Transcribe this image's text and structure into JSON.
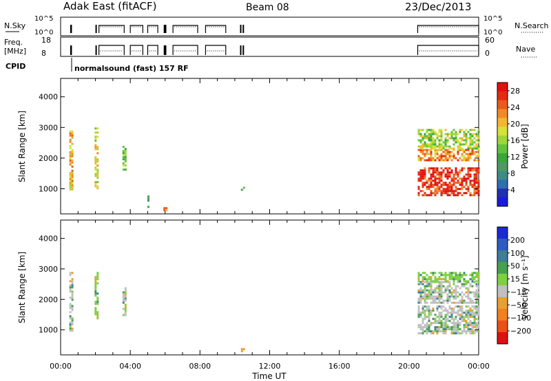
{
  "header": {
    "station": "Adak East (fitACF)",
    "beam": "Beam 08",
    "date": "23/Dec/2013"
  },
  "strips": {
    "nsky_label": "N.Sky",
    "nsky_ticks": [
      "10^5",
      "10^0"
    ],
    "nsearch_label": "N.Search",
    "nsearch_ticks": [
      "10^5",
      "10^0"
    ],
    "freq_label_1": "Freq.",
    "freq_label_2": "[MHz]",
    "freq_ticks": [
      "18",
      "8"
    ],
    "nave_label": "Nave",
    "nave_ticks": [
      "60",
      "0"
    ],
    "cpid_label": "CPID",
    "cpid_text": "normalsound (fast) 157 RF",
    "operating_windows_hours": [
      [
        0.55,
        0.65
      ],
      [
        2.0,
        2.07
      ],
      [
        2.2,
        3.65
      ],
      [
        4.0,
        4.72
      ],
      [
        5.0,
        5.58
      ],
      [
        5.92,
        6.07
      ],
      [
        6.45,
        7.87
      ],
      [
        8.32,
        9.48
      ],
      [
        10.3,
        10.38
      ],
      [
        10.45,
        10.52
      ],
      [
        20.5,
        24.0
      ]
    ],
    "colors": {
      "solid": "#000000",
      "dotted": "#000000"
    }
  },
  "chart_data": [
    {
      "type": "heatmap",
      "panel": "power",
      "xlabel": "Time UT",
      "ylabel": "Slant Range [km]",
      "x_ticks": [
        "00:00",
        "04:00",
        "08:00",
        "12:00",
        "16:00",
        "20:00",
        "00:00"
      ],
      "xlim_hours": [
        0,
        24
      ],
      "ylim": [
        180,
        4600
      ],
      "y_ticks": [
        "1000",
        "2000",
        "3000",
        "4000"
      ],
      "colorbar": {
        "label": "Power [dB]",
        "ticks": [
          "4",
          "8",
          "12",
          "16",
          "20",
          "24",
          "28"
        ],
        "range": [
          0,
          30
        ],
        "colors": [
          "#1a1adc",
          "#2030b0",
          "#2f6eb0",
          "#3f8c86",
          "#4f9a63",
          "#3aa63c",
          "#62c23c",
          "#9ed63a",
          "#d8e03a",
          "#f2b632",
          "#f08a28",
          "#ea5a1e",
          "#e42a14",
          "#e01010"
        ]
      },
      "echo_bands": [
        {
          "t0": 0.5,
          "t1": 0.68,
          "r0": 1000,
          "r1": 2900,
          "level": 20
        },
        {
          "t0": 1.95,
          "t1": 2.08,
          "r0": 1000,
          "r1": 3000,
          "level": 18
        },
        {
          "t0": 3.55,
          "t1": 3.68,
          "r0": 1600,
          "r1": 2400,
          "level": 14
        },
        {
          "t0": 4.98,
          "t1": 5.05,
          "r0": 300,
          "r1": 780,
          "level": 10
        },
        {
          "t0": 5.9,
          "t1": 6.02,
          "r0": 260,
          "r1": 400,
          "level": 24
        },
        {
          "t0": 10.35,
          "t1": 10.48,
          "r0": 950,
          "r1": 1200,
          "level": 10
        },
        {
          "t0": 20.5,
          "t1": 24.0,
          "r0": 800,
          "r1": 1700,
          "level": 27
        },
        {
          "t0": 20.5,
          "t1": 24.0,
          "r0": 1900,
          "r1": 2300,
          "level": 22
        },
        {
          "t0": 20.5,
          "t1": 24.0,
          "r0": 2300,
          "r1": 2950,
          "level": 15
        }
      ]
    },
    {
      "type": "heatmap",
      "panel": "velocity",
      "xlabel": "Time UT",
      "ylabel": "Slant Range [km]",
      "x_ticks": [
        "00:00",
        "04:00",
        "08:00",
        "12:00",
        "16:00",
        "20:00",
        "00:00"
      ],
      "xlim_hours": [
        0,
        24
      ],
      "ylim": [
        180,
        4600
      ],
      "y_ticks": [
        "1000",
        "2000",
        "3000",
        "4000"
      ],
      "colorbar": {
        "label": "Velocity [m s⁻¹]",
        "ticks": [
          "200",
          "100",
          "50",
          "15",
          "−15",
          "−50",
          "−100",
          "−200"
        ],
        "colors": [
          "#1a2ad0",
          "#2e5cc0",
          "#3f7e95",
          "#46a050",
          "#7ed040",
          "#c0c0c0",
          "#e8a030",
          "#f08020",
          "#ec5018",
          "#e01010"
        ]
      },
      "echo_bands": [
        {
          "t0": 0.5,
          "t1": 0.68,
          "r0": 1000,
          "r1": 2900,
          "level": 5
        },
        {
          "t0": 1.95,
          "t1": 2.08,
          "r0": 1400,
          "r1": 2900,
          "level": 4
        },
        {
          "t0": 3.55,
          "t1": 3.68,
          "r0": 1500,
          "r1": 2400,
          "level": 5
        },
        {
          "t0": 10.35,
          "t1": 10.48,
          "r0": 300,
          "r1": 400,
          "level": 6
        },
        {
          "t0": 20.5,
          "t1": 24.0,
          "r0": 900,
          "r1": 1800,
          "level": 5
        },
        {
          "t0": 20.5,
          "t1": 24.0,
          "r0": 1900,
          "r1": 2600,
          "level": 5
        },
        {
          "t0": 20.5,
          "t1": 24.0,
          "r0": 2600,
          "r1": 2900,
          "level": 4
        }
      ]
    }
  ]
}
